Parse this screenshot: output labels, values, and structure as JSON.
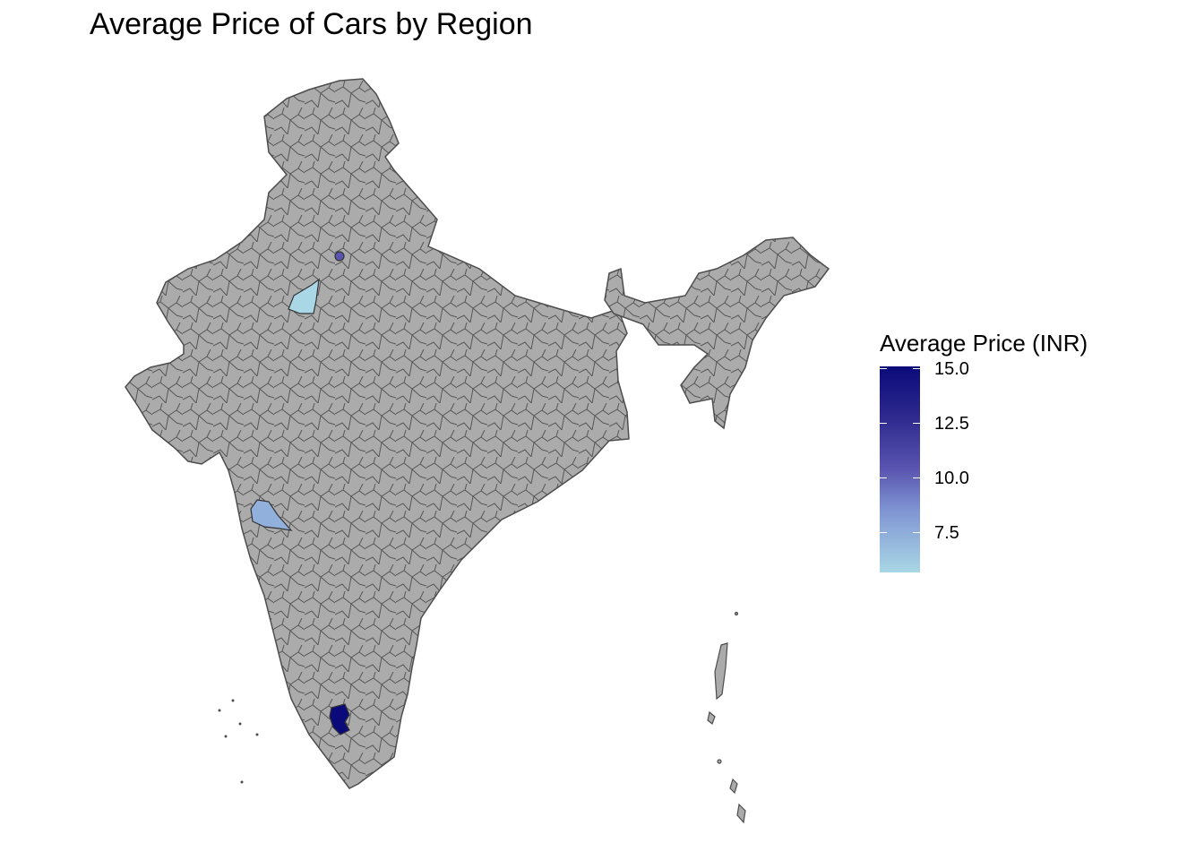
{
  "title": "Average Price of Cars by Region",
  "legend": {
    "title": "Average Price (INR)",
    "ticks": [
      "15.0",
      "12.5",
      "10.0",
      "7.5"
    ],
    "range": [
      5.8,
      15.0
    ]
  },
  "colors": {
    "land": "#ababab",
    "border": "#4d4d4d",
    "scale_high": "#0a0a7a",
    "scale_low": "#a9d7e5"
  },
  "highlighted_regions": [
    {
      "value": 15.0,
      "color": "#0a0a7a"
    },
    {
      "value": 10.2,
      "color": "#5a55b0"
    },
    {
      "value": 7.2,
      "color": "#92b0dc"
    },
    {
      "value": 6.0,
      "color": "#a9d7e5"
    }
  ]
}
